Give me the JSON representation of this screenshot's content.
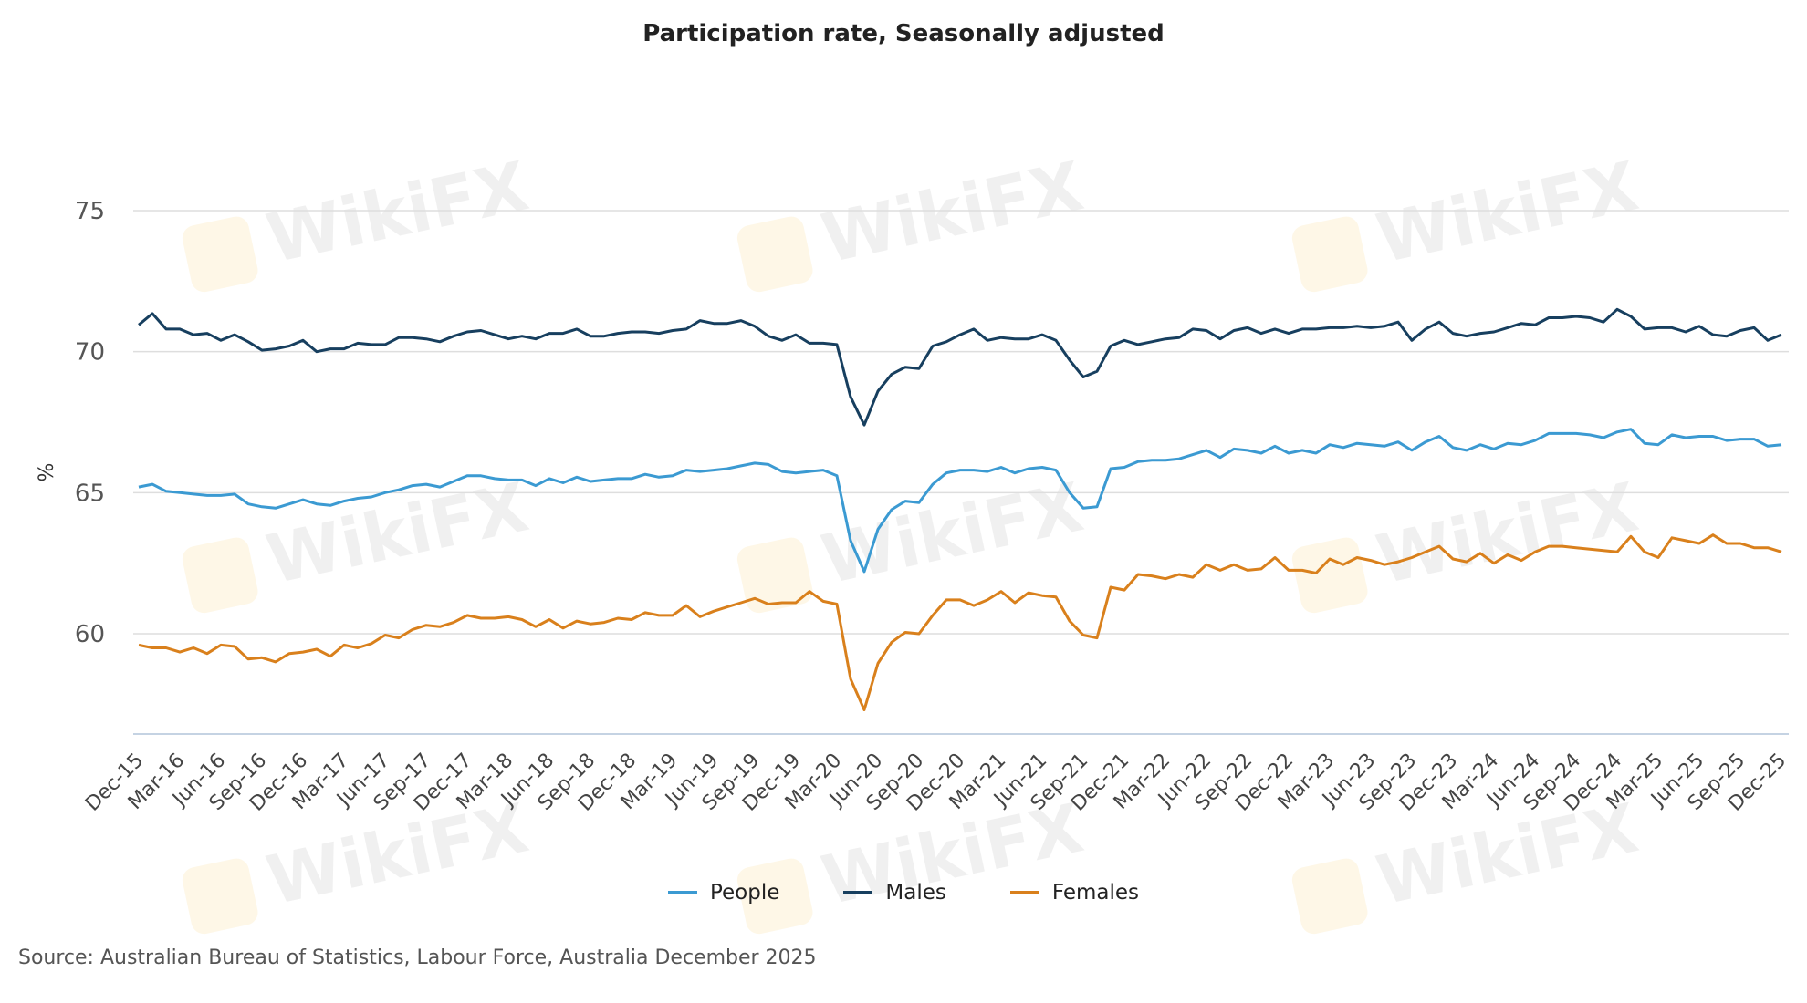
{
  "watermark": "WikiFX",
  "chart_data": {
    "type": "line",
    "title": "Participation rate, Seasonally adjusted",
    "ylabel": "%",
    "xlabel": "",
    "ylim": [
      56.5,
      75
    ],
    "yticks": [
      60,
      65,
      70,
      75
    ],
    "grid": true,
    "legend_position": "bottom",
    "x_start": "Dec-15",
    "x_end": "Dec-25",
    "x_frequency": "monthly",
    "xtick_labels": [
      "Dec-15",
      "Mar-16",
      "Jun-16",
      "Sep-16",
      "Dec-16",
      "Mar-17",
      "Jun-17",
      "Sep-17",
      "Dec-17",
      "Mar-18",
      "Jun-18",
      "Sep-18",
      "Dec-18",
      "Mar-19",
      "Jun-19",
      "Sep-19",
      "Dec-19",
      "Mar-20",
      "Jun-20",
      "Sep-20",
      "Dec-20",
      "Mar-21",
      "Jun-21",
      "Sep-21",
      "Dec-21",
      "Mar-22",
      "Jun-22",
      "Sep-22",
      "Dec-22",
      "Mar-23",
      "Jun-23",
      "Sep-23",
      "Dec-23",
      "Mar-24",
      "Jun-24",
      "Sep-24",
      "Dec-24",
      "Mar-25",
      "Jun-25",
      "Sep-25",
      "Dec-25"
    ],
    "series": [
      {
        "name": "People",
        "color": "#3b9ad2",
        "values": [
          65.2,
          65.3,
          65.05,
          65.0,
          64.95,
          64.9,
          64.9,
          64.95,
          64.6,
          64.5,
          64.45,
          64.6,
          64.75,
          64.6,
          64.55,
          64.7,
          64.8,
          64.85,
          65.0,
          65.1,
          65.25,
          65.3,
          65.2,
          65.4,
          65.6,
          65.6,
          65.5,
          65.45,
          65.45,
          65.25,
          65.5,
          65.35,
          65.55,
          65.4,
          65.45,
          65.5,
          65.5,
          65.65,
          65.55,
          65.6,
          65.8,
          65.75,
          65.8,
          65.85,
          65.95,
          66.05,
          66.0,
          65.75,
          65.7,
          65.75,
          65.8,
          65.6,
          63.3,
          62.2,
          63.7,
          64.4,
          64.7,
          64.65,
          65.3,
          65.7,
          65.8,
          65.8,
          65.75,
          65.9,
          65.7,
          65.85,
          65.9,
          65.8,
          65.0,
          64.45,
          64.5,
          65.85,
          65.9,
          66.1,
          66.15,
          66.15,
          66.2,
          66.35,
          66.5,
          66.25,
          66.55,
          66.5,
          66.4,
          66.65,
          66.4,
          66.5,
          66.4,
          66.7,
          66.6,
          66.75,
          66.7,
          66.65,
          66.8,
          66.5,
          66.8,
          67.0,
          66.6,
          66.5,
          66.7,
          66.55,
          66.75,
          66.7,
          66.85,
          67.1,
          67.1,
          67.1,
          67.05,
          66.95,
          67.15,
          67.25,
          66.75,
          66.7,
          67.05,
          66.95,
          67.0,
          67.0,
          66.85,
          66.9,
          66.9,
          66.65,
          66.7
        ]
      },
      {
        "name": "Males",
        "color": "#173f5f",
        "values": [
          70.95,
          71.35,
          70.8,
          70.8,
          70.6,
          70.65,
          70.4,
          70.6,
          70.35,
          70.05,
          70.1,
          70.2,
          70.4,
          70.0,
          70.1,
          70.1,
          70.3,
          70.25,
          70.25,
          70.5,
          70.5,
          70.45,
          70.35,
          70.55,
          70.7,
          70.75,
          70.6,
          70.45,
          70.55,
          70.45,
          70.65,
          70.65,
          70.8,
          70.55,
          70.55,
          70.65,
          70.7,
          70.7,
          70.65,
          70.75,
          70.8,
          71.1,
          71.0,
          71.0,
          71.1,
          70.9,
          70.55,
          70.4,
          70.6,
          70.3,
          70.3,
          70.25,
          68.4,
          67.4,
          68.6,
          69.2,
          69.45,
          69.4,
          70.2,
          70.35,
          70.6,
          70.8,
          70.4,
          70.5,
          70.45,
          70.45,
          70.6,
          70.4,
          69.7,
          69.1,
          69.3,
          70.2,
          70.4,
          70.25,
          70.35,
          70.45,
          70.5,
          70.8,
          70.75,
          70.45,
          70.75,
          70.85,
          70.65,
          70.8,
          70.65,
          70.8,
          70.8,
          70.85,
          70.85,
          70.9,
          70.85,
          70.9,
          71.05,
          70.4,
          70.8,
          71.05,
          70.65,
          70.55,
          70.65,
          70.7,
          70.85,
          71.0,
          70.95,
          71.2,
          71.2,
          71.25,
          71.2,
          71.05,
          71.5,
          71.25,
          70.8,
          70.85,
          70.85,
          70.7,
          70.9,
          70.6,
          70.55,
          70.75,
          70.85,
          70.4,
          70.6
        ]
      },
      {
        "name": "Females",
        "color": "#d9801c",
        "values": [
          59.6,
          59.5,
          59.5,
          59.35,
          59.5,
          59.3,
          59.6,
          59.55,
          59.1,
          59.15,
          59.0,
          59.3,
          59.35,
          59.45,
          59.2,
          59.6,
          59.5,
          59.65,
          59.95,
          59.85,
          60.15,
          60.3,
          60.25,
          60.4,
          60.65,
          60.55,
          60.55,
          60.6,
          60.5,
          60.25,
          60.5,
          60.2,
          60.45,
          60.35,
          60.4,
          60.55,
          60.5,
          60.75,
          60.65,
          60.65,
          61.0,
          60.6,
          60.8,
          60.95,
          61.1,
          61.25,
          61.05,
          61.1,
          61.1,
          61.5,
          61.15,
          61.05,
          58.4,
          57.3,
          58.95,
          59.7,
          60.05,
          60.0,
          60.65,
          61.2,
          61.2,
          61.0,
          61.2,
          61.5,
          61.1,
          61.45,
          61.35,
          61.3,
          60.45,
          59.95,
          59.85,
          61.65,
          61.55,
          62.1,
          62.05,
          61.95,
          62.1,
          62.0,
          62.45,
          62.25,
          62.45,
          62.25,
          62.3,
          62.7,
          62.25,
          62.25,
          62.15,
          62.65,
          62.45,
          62.7,
          62.6,
          62.45,
          62.55,
          62.7,
          62.9,
          63.1,
          62.65,
          62.55,
          62.85,
          62.5,
          62.8,
          62.6,
          62.9,
          63.1,
          63.1,
          63.05,
          63.0,
          62.95,
          62.9,
          63.45,
          62.9,
          62.7,
          63.4,
          63.3,
          63.2,
          63.5,
          63.2,
          63.2,
          63.05,
          63.05,
          62.9
        ]
      }
    ],
    "source": "Source: Australian Bureau of Statistics, Labour Force, Australia December 2025"
  }
}
